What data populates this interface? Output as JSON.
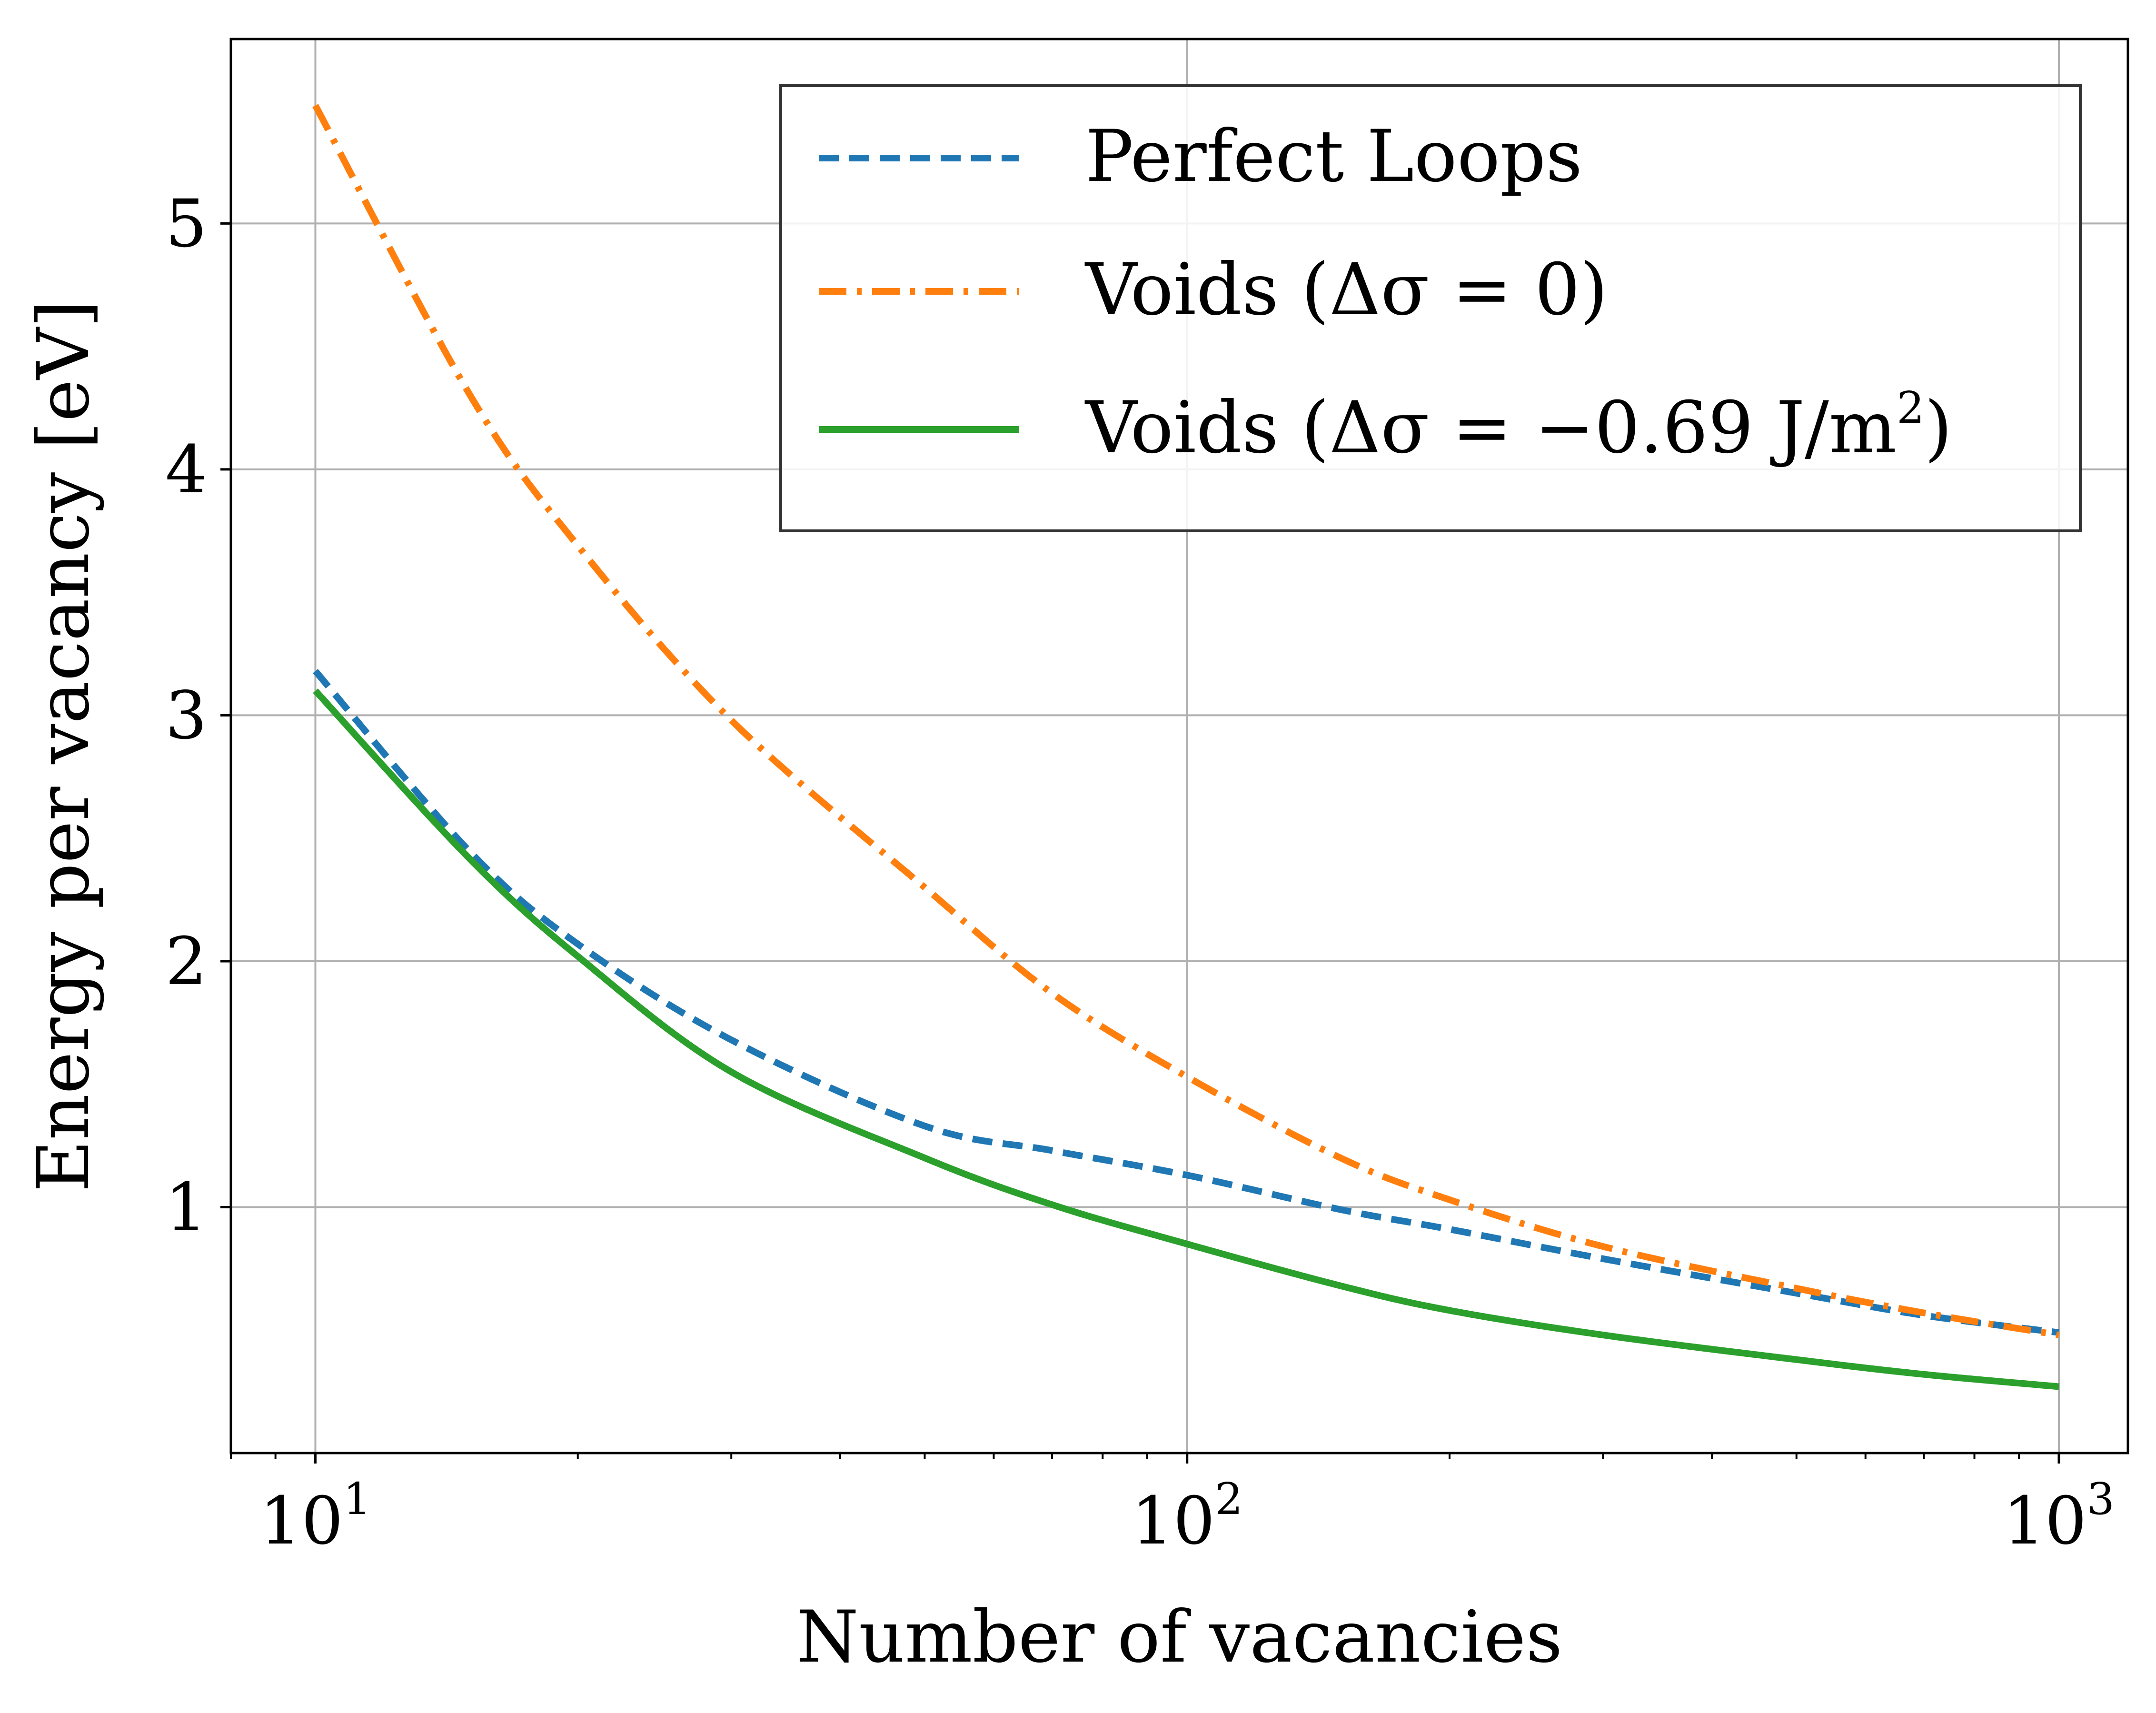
{
  "chart_data": {
    "type": "line",
    "xlabel": "Number of vacancies",
    "ylabel": "Energy per vacancy [eV]",
    "xscale": "log",
    "xlim": [
      8,
      1200
    ],
    "ylim": [
      0.0,
      5.75
    ],
    "xticks": [
      {
        "value": 10,
        "label": "10",
        "exp": "1"
      },
      {
        "value": 100,
        "label": "10",
        "exp": "2"
      },
      {
        "value": 1000,
        "label": "10",
        "exp": "3"
      }
    ],
    "yticks": [
      {
        "value": 1,
        "label": "1"
      },
      {
        "value": 2,
        "label": "2"
      },
      {
        "value": 3,
        "label": "3"
      },
      {
        "value": 4,
        "label": "4"
      },
      {
        "value": 5,
        "label": "5"
      }
    ],
    "grid": true,
    "legend_position": "top-right",
    "x": [
      10,
      15,
      20,
      30,
      50,
      70,
      100,
      150,
      200,
      300,
      500,
      700,
      1000
    ],
    "series": [
      {
        "name": "Perfect Loops",
        "legend_label": "Perfect Loops",
        "color": "#1f77b4",
        "dash": "dashed",
        "values": [
          3.18,
          2.45,
          2.07,
          1.68,
          1.33,
          1.23,
          1.13,
          0.99,
          0.91,
          0.79,
          0.65,
          0.56,
          0.49
        ]
      },
      {
        "name": "Voids (Δσ = 0)",
        "legend_label": "Voids (Δσ = 0)",
        "color": "#ff7f0e",
        "dash": "dashdot",
        "values": [
          5.48,
          4.31,
          3.69,
          2.98,
          2.3,
          1.87,
          1.53,
          1.2,
          1.03,
          0.84,
          0.67,
          0.57,
          0.48
        ]
      },
      {
        "name": "Voids (Δσ = −0.69 J/m2)",
        "legend_label": "Voids (Δσ = −0.69 J/m",
        "legend_sup": "2",
        "legend_suffix": ")",
        "color": "#2ca02c",
        "dash": "solid",
        "values": [
          3.1,
          2.42,
          2.02,
          1.55,
          1.2,
          1.01,
          0.85,
          0.68,
          0.58,
          0.48,
          0.38,
          0.32,
          0.27
        ]
      }
    ]
  }
}
